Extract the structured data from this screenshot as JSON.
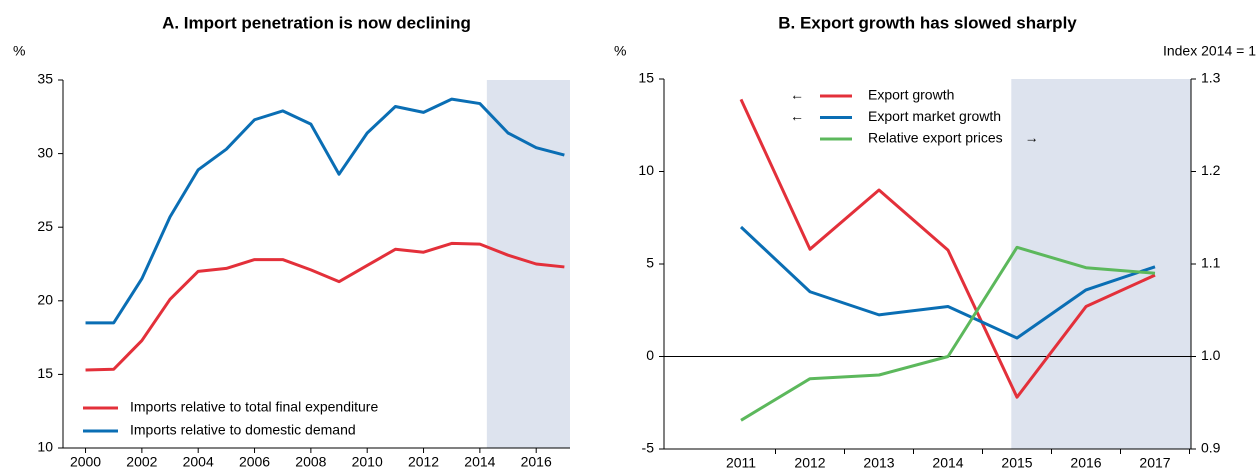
{
  "chart_data": [
    {
      "type": "line",
      "title": "A. Import penetration is now declining",
      "y_label": "%",
      "x": [
        2000,
        2001,
        2002,
        2003,
        2004,
        2005,
        2006,
        2007,
        2008,
        2009,
        2010,
        2011,
        2012,
        2013,
        2014,
        2015,
        2016,
        2017
      ],
      "xlim": [
        1999.2,
        2017.2
      ],
      "xticks": [
        2000,
        2002,
        2004,
        2006,
        2008,
        2010,
        2012,
        2014,
        2016
      ],
      "ylim": [
        10,
        35
      ],
      "yticks": [
        10,
        15,
        20,
        25,
        30,
        35
      ],
      "legend": "lower left",
      "series": [
        {
          "name": "Imports relative to total final expenditure",
          "color": "#e3303a",
          "values": [
            15.3,
            15.35,
            17.3,
            20.1,
            22.0,
            22.2,
            22.8,
            22.8,
            22.1,
            21.3,
            22.4,
            23.5,
            23.3,
            23.9,
            23.85,
            23.1,
            22.5,
            22.3
          ]
        },
        {
          "name": "Imports relative to domestic demand",
          "color": "#0a6eb4",
          "values": [
            18.5,
            18.5,
            21.5,
            25.7,
            28.9,
            30.3,
            32.3,
            32.9,
            32.0,
            28.6,
            31.4,
            33.2,
            32.8,
            33.7,
            33.4,
            31.4,
            30.4,
            29.9
          ]
        }
      ]
    },
    {
      "type": "line",
      "title": "B. Export growth has slowed sharply",
      "y_label": "%",
      "y2_label": "Index 2014 = 1",
      "categories": [
        "2011",
        "2012",
        "2013",
        "2014",
        "2015",
        "2016",
        "2017"
      ],
      "ylim": [
        -5,
        15
      ],
      "yticks": [
        -5,
        0,
        5,
        10,
        15
      ],
      "y2lim": [
        0.9,
        1.3
      ],
      "y2ticks": [
        0.9,
        {
          "value": 1,
          "label": "1.0"
        },
        1.1,
        1.2,
        1.3
      ],
      "zero_line": true,
      "legend": "upper center",
      "series": [
        {
          "name": "Export growth",
          "color": "#e3303a",
          "arrow": "←",
          "values": [
            13.9,
            5.8,
            9.0,
            5.75,
            -2.2,
            2.7,
            4.4
          ]
        },
        {
          "name": "Export market growth",
          "color": "#0a6eb4",
          "arrow": "←",
          "values": [
            7.0,
            3.5,
            2.25,
            2.7,
            1.0,
            3.6,
            4.85
          ]
        },
        {
          "name": "Relative export prices",
          "color": "#5cb85c",
          "arrow": "→",
          "axis": "y2",
          "values": [
            0.931,
            0.976,
            0.98,
            1.0,
            1.118,
            1.096,
            1.09
          ]
        }
      ]
    }
  ]
}
